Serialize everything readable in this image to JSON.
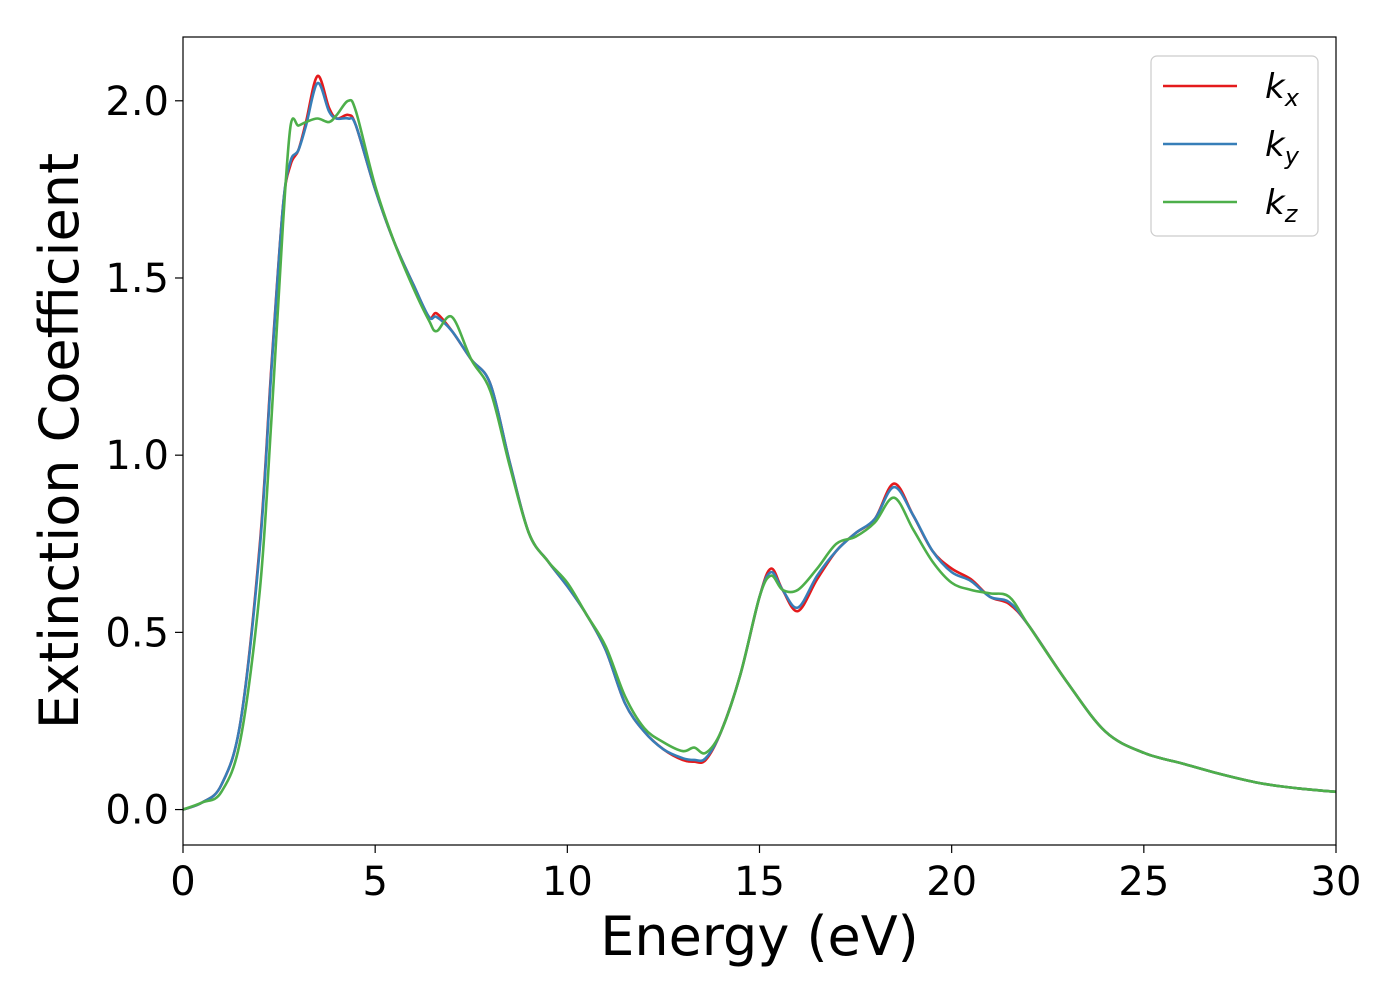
{
  "chart_data": {
    "type": "line",
    "title": "",
    "xlabel": "Energy (eV)",
    "ylabel": "Extinction Coefficient",
    "xlim": [
      0,
      30
    ],
    "ylim": [
      -0.1,
      2.18
    ],
    "x_ticks": [
      0,
      5,
      10,
      15,
      20,
      25,
      30
    ],
    "y_ticks": [
      0.0,
      0.5,
      1.0,
      1.5,
      2.0
    ],
    "x_tick_labels": [
      "0",
      "5",
      "10",
      "15",
      "20",
      "25",
      "30"
    ],
    "y_tick_labels": [
      "0.0",
      "0.5",
      "1.0",
      "1.5",
      "2.0"
    ],
    "grid": false,
    "legend_position": "top-right",
    "x": [
      0,
      0.5,
      1.0,
      1.5,
      2.0,
      2.3,
      2.6,
      2.8,
      3.0,
      3.2,
      3.5,
      3.8,
      4.0,
      4.3,
      4.5,
      5.0,
      5.5,
      6.0,
      6.4,
      6.6,
      7.0,
      7.5,
      8.0,
      8.5,
      9.0,
      9.5,
      10.0,
      10.5,
      11.0,
      11.5,
      12.0,
      12.5,
      13.0,
      13.3,
      13.6,
      14.0,
      14.5,
      15.0,
      15.3,
      15.6,
      16.0,
      16.5,
      17.0,
      17.5,
      18.0,
      18.5,
      19.0,
      19.5,
      20.0,
      20.5,
      21.0,
      21.5,
      22.0,
      23.0,
      24.0,
      25.0,
      26.0,
      27.0,
      28.0,
      29.0,
      30.0
    ],
    "series": [
      {
        "name": "k",
        "subscript": "x",
        "color": "#e41a1c",
        "values": [
          0.0,
          0.02,
          0.07,
          0.25,
          0.75,
          1.25,
          1.7,
          1.82,
          1.86,
          1.94,
          2.07,
          1.98,
          1.95,
          1.96,
          1.93,
          1.75,
          1.6,
          1.48,
          1.39,
          1.4,
          1.35,
          1.27,
          1.2,
          0.98,
          0.78,
          0.7,
          0.63,
          0.55,
          0.45,
          0.3,
          0.22,
          0.17,
          0.14,
          0.135,
          0.14,
          0.22,
          0.38,
          0.6,
          0.68,
          0.62,
          0.56,
          0.65,
          0.73,
          0.78,
          0.82,
          0.92,
          0.83,
          0.73,
          0.68,
          0.65,
          0.6,
          0.58,
          0.52,
          0.36,
          0.22,
          0.16,
          0.13,
          0.1,
          0.075,
          0.06,
          0.05
        ]
      },
      {
        "name": "k",
        "subscript": "y",
        "color": "#377eb8",
        "values": [
          0.0,
          0.02,
          0.07,
          0.25,
          0.74,
          1.24,
          1.7,
          1.83,
          1.86,
          1.93,
          2.05,
          1.97,
          1.95,
          1.95,
          1.93,
          1.75,
          1.6,
          1.48,
          1.39,
          1.39,
          1.35,
          1.27,
          1.2,
          0.98,
          0.78,
          0.7,
          0.63,
          0.55,
          0.45,
          0.3,
          0.22,
          0.17,
          0.145,
          0.14,
          0.145,
          0.22,
          0.38,
          0.6,
          0.67,
          0.62,
          0.57,
          0.66,
          0.73,
          0.78,
          0.82,
          0.91,
          0.83,
          0.73,
          0.67,
          0.645,
          0.6,
          0.585,
          0.52,
          0.36,
          0.22,
          0.16,
          0.13,
          0.1,
          0.075,
          0.06,
          0.05
        ]
      },
      {
        "name": "k",
        "subscript": "z",
        "color": "#4daf4a",
        "values": [
          0.0,
          0.02,
          0.05,
          0.2,
          0.62,
          1.1,
          1.65,
          1.93,
          1.93,
          1.94,
          1.95,
          1.94,
          1.96,
          2.0,
          1.97,
          1.76,
          1.6,
          1.47,
          1.38,
          1.35,
          1.39,
          1.27,
          1.18,
          0.97,
          0.78,
          0.7,
          0.64,
          0.55,
          0.46,
          0.32,
          0.23,
          0.19,
          0.165,
          0.175,
          0.16,
          0.22,
          0.38,
          0.6,
          0.66,
          0.62,
          0.62,
          0.68,
          0.75,
          0.77,
          0.81,
          0.88,
          0.79,
          0.7,
          0.64,
          0.62,
          0.61,
          0.6,
          0.52,
          0.36,
          0.22,
          0.16,
          0.13,
          0.1,
          0.075,
          0.06,
          0.05
        ]
      }
    ]
  }
}
